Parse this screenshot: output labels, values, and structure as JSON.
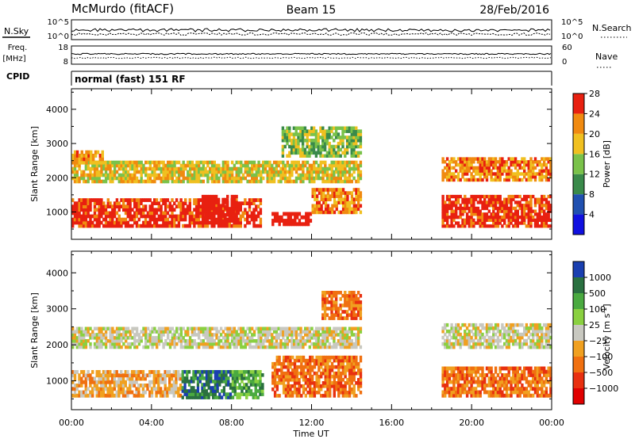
{
  "header": {
    "station": "McMurdo (fitACF)",
    "beam": "Beam 15",
    "date": "28/Feb/2016"
  },
  "noise_panel": {
    "left_label": "N.Sky",
    "right_label": "N.Search",
    "left_ticks": [
      "10^5",
      "10^0"
    ],
    "right_ticks": [
      "10^5",
      "10^0"
    ]
  },
  "freq_panel": {
    "left_label_1": "Freq.",
    "left_label_2": "[MHz]",
    "right_label": "Nave",
    "left_ticks": [
      "18",
      "8"
    ],
    "right_ticks": [
      "60",
      "0"
    ]
  },
  "cpid_panel": {
    "label": "CPID",
    "value": "normal (fast) 151 RF"
  },
  "time_axis": {
    "label": "Time UT",
    "ticks": [
      "00:00",
      "04:00",
      "08:00",
      "12:00",
      "16:00",
      "20:00",
      "00:00"
    ]
  },
  "chart_data": [
    {
      "type": "heatmap",
      "title": "Power",
      "xlabel": "Time UT",
      "ylabel": "Slant Range [km]",
      "ylim": [
        200,
        4600
      ],
      "y_ticks": [
        "1000",
        "2000",
        "3000",
        "4000"
      ],
      "colorbar_label": "Power [dB]",
      "colorbar_ticks": [
        "4",
        "8",
        "12",
        "16",
        "20",
        "24",
        "28"
      ],
      "colors": [
        "#1010e0",
        "#2050b0",
        "#3a8a4a",
        "#7ac24a",
        "#f0c020",
        "#f08a10",
        "#e82010"
      ],
      "echo_regions": [
        {
          "t0": 0.0,
          "t1": 9.5,
          "r0": 550,
          "r1": 1400,
          "level": 6
        },
        {
          "t0": 6.5,
          "t1": 8.3,
          "r0": 700,
          "r1": 1500,
          "level": 7
        },
        {
          "t0": 10.0,
          "t1": 12.0,
          "r0": 600,
          "r1": 1000,
          "level": 7
        },
        {
          "t0": 12.0,
          "t1": 14.5,
          "r0": 950,
          "r1": 1700,
          "level": 5
        },
        {
          "t0": 0.0,
          "t1": 14.5,
          "r0": 1850,
          "r1": 2500,
          "level": 4
        },
        {
          "t0": 0.0,
          "t1": 1.6,
          "r0": 2400,
          "r1": 2800,
          "level": 5
        },
        {
          "t0": 10.5,
          "t1": 14.5,
          "r0": 2600,
          "r1": 3500,
          "level": 3
        },
        {
          "t0": 18.5,
          "t1": 24.0,
          "r0": 550,
          "r1": 1500,
          "level": 6
        },
        {
          "t0": 18.5,
          "t1": 24.0,
          "r0": 1900,
          "r1": 2600,
          "level": 5
        }
      ]
    },
    {
      "type": "heatmap",
      "title": "Velocity",
      "xlabel": "Time UT",
      "ylabel": "Slant Range [km]",
      "ylim": [
        200,
        4600
      ],
      "y_ticks": [
        "1000",
        "2000",
        "3000",
        "4000"
      ],
      "colorbar_label": "Velocity [m s",
      "colorbar_unit_sup": "-1",
      "colorbar_ticks": [
        "1000",
        "500",
        "100",
        "25",
        "−25",
        "−100",
        "−500",
        "−1000"
      ],
      "colors": [
        "#1a3fb0",
        "#2a7040",
        "#4aaa40",
        "#8ad040",
        "#c8c8c0",
        "#f0a020",
        "#f07010",
        "#e83010",
        "#e00000"
      ],
      "echo_regions": [
        {
          "t0": 0.0,
          "t1": 14.5,
          "r0": 1900,
          "r1": 2500,
          "level": 4
        },
        {
          "t0": 0.0,
          "t1": 5.5,
          "r0": 550,
          "r1": 1300,
          "level": 5
        },
        {
          "t0": 5.5,
          "t1": 8.0,
          "r0": 500,
          "r1": 1300,
          "level": 1
        },
        {
          "t0": 8.0,
          "t1": 9.6,
          "r0": 500,
          "r1": 1300,
          "level": 2
        },
        {
          "t0": 10.0,
          "t1": 14.5,
          "r0": 550,
          "r1": 1700,
          "level": 6
        },
        {
          "t0": 12.5,
          "t1": 14.5,
          "r0": 2700,
          "r1": 3500,
          "level": 6
        },
        {
          "t0": 18.5,
          "t1": 24.0,
          "r0": 550,
          "r1": 1400,
          "level": 6
        },
        {
          "t0": 18.5,
          "t1": 24.0,
          "r0": 1900,
          "r1": 2600,
          "level": 4
        }
      ]
    }
  ]
}
